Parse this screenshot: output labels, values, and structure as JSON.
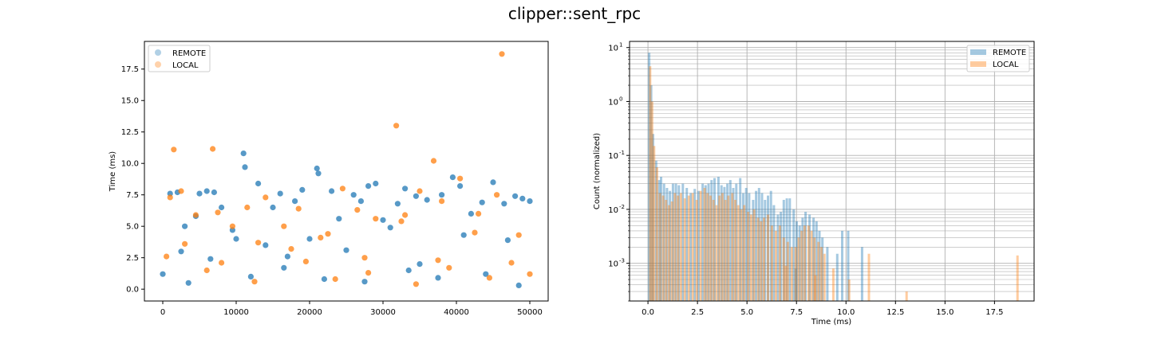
{
  "figure": {
    "title": "clipper::sent_rpc"
  },
  "colors": {
    "remote": "#1f77b4",
    "local": "#ff7f0e"
  },
  "chart_data": [
    {
      "type": "scatter",
      "xlabel": "",
      "ylabel": "Time (ms)",
      "xlim": [
        -2500,
        52500
      ],
      "ylim": [
        -0.94,
        19.7
      ],
      "xticks": [
        0,
        10000,
        20000,
        30000,
        40000,
        50000
      ],
      "xtick_labels": [
        "0",
        "10000",
        "20000",
        "30000",
        "40000",
        "50000"
      ],
      "yticks": [
        0.0,
        2.5,
        5.0,
        7.5,
        10.0,
        12.5,
        15.0,
        17.5
      ],
      "ytick_labels": [
        "0.0",
        "2.5",
        "5.0",
        "7.5",
        "10.0",
        "12.5",
        "15.0",
        "17.5"
      ],
      "grid": false,
      "legend": {
        "position": "top-left",
        "entries": [
          "REMOTE",
          "LOCAL"
        ]
      },
      "series": [
        {
          "name": "REMOTE",
          "color": "#1f77b4",
          "x": [
            0,
            1000,
            2000,
            3000,
            5000,
            6000,
            7000,
            8000,
            9500,
            11000,
            11200,
            13000,
            15000,
            16000,
            18000,
            19000,
            21000,
            21200,
            23000,
            24000,
            26000,
            27000,
            28000,
            29000,
            31000,
            32000,
            33000,
            34500,
            36000,
            38000,
            39500,
            40500,
            42000,
            43500,
            45000,
            46500,
            48000,
            49000,
            50000,
            2500,
            4500,
            10000,
            14000,
            17000,
            20000,
            25000,
            30000,
            35000,
            41000,
            47000,
            3500,
            12000,
            22000,
            33500,
            44000,
            6500,
            16500,
            27500,
            37500,
            48500
          ],
          "y": [
            1.2,
            7.6,
            7.7,
            5.0,
            7.6,
            7.8,
            7.7,
            6.5,
            4.7,
            10.8,
            9.7,
            8.4,
            6.5,
            7.6,
            7.0,
            7.9,
            9.6,
            9.2,
            7.8,
            5.6,
            7.5,
            7.0,
            8.2,
            8.4,
            4.9,
            6.8,
            8.0,
            7.4,
            7.1,
            7.5,
            8.9,
            8.2,
            6.0,
            6.9,
            8.5,
            6.8,
            7.4,
            7.2,
            7.0,
            3.0,
            5.8,
            4.0,
            3.5,
            2.6,
            4.0,
            3.1,
            5.5,
            2.0,
            4.3,
            3.9,
            0.5,
            1.0,
            0.8,
            1.5,
            1.2,
            2.4,
            1.7,
            0.6,
            0.9,
            0.3
          ]
        },
        {
          "name": "LOCAL",
          "color": "#ff7f0e",
          "x": [
            1500,
            6800,
            31800,
            36900,
            46200,
            1000,
            2500,
            4500,
            7500,
            9500,
            11500,
            14000,
            16500,
            18500,
            21500,
            24500,
            26500,
            29000,
            33000,
            35000,
            38000,
            40500,
            43000,
            45500,
            48500,
            500,
            3000,
            8000,
            13000,
            17500,
            22500,
            27500,
            32500,
            37500,
            42500,
            47500,
            50000,
            6000,
            19500,
            28000,
            39000,
            44500,
            12500,
            23500,
            34500
          ],
          "y": [
            11.1,
            11.15,
            13.0,
            10.2,
            18.7,
            7.3,
            7.8,
            5.9,
            6.1,
            5.0,
            6.5,
            7.3,
            5.0,
            6.4,
            4.1,
            8.0,
            6.3,
            5.6,
            5.9,
            7.8,
            7.0,
            8.8,
            6.0,
            7.5,
            4.3,
            2.6,
            3.6,
            2.1,
            3.7,
            3.2,
            4.4,
            2.5,
            5.4,
            2.3,
            4.5,
            2.1,
            1.2,
            1.5,
            2.2,
            1.3,
            1.7,
            0.9,
            0.6,
            0.8,
            0.4
          ]
        }
      ]
    },
    {
      "type": "bar",
      "subtype": "histogram",
      "xlabel": "Time (ms)",
      "ylabel": "Count (normalized)",
      "xlim": [
        -0.93,
        19.5
      ],
      "ylim": [
        0.0002,
        13
      ],
      "yscale": "log",
      "xticks": [
        0.0,
        2.5,
        5.0,
        7.5,
        10.0,
        12.5,
        15.0,
        17.5
      ],
      "xtick_labels": [
        "0.0",
        "2.5",
        "5.0",
        "7.5",
        "10.0",
        "12.5",
        "15.0",
        "17.5"
      ],
      "yticks_major": [
        0.001,
        0.01,
        0.1,
        1,
        10
      ],
      "ytick_labels": [
        "10",
        "10",
        "10",
        "10",
        "10"
      ],
      "ytick_exponents": [
        "-3",
        "-2",
        "-1",
        "0",
        "1"
      ],
      "grid": true,
      "legend": {
        "position": "top-right",
        "entries": [
          "REMOTE",
          "LOCAL"
        ]
      },
      "series": [
        {
          "name": "REMOTE",
          "color": "#1f77b4",
          "bins": [
            [
              0.0,
              8.0
            ],
            [
              0.1,
              2.0
            ],
            [
              0.2,
              0.25
            ],
            [
              0.35,
              0.08
            ],
            [
              0.5,
              0.035
            ],
            [
              0.6,
              0.04
            ],
            [
              0.75,
              0.03
            ],
            [
              0.9,
              0.025
            ],
            [
              1.05,
              0.022
            ],
            [
              1.2,
              0.03
            ],
            [
              1.35,
              0.03
            ],
            [
              1.5,
              0.028
            ],
            [
              1.7,
              0.03
            ],
            [
              1.9,
              0.025
            ],
            [
              2.1,
              0.02
            ],
            [
              2.3,
              0.024
            ],
            [
              2.5,
              0.022
            ],
            [
              2.7,
              0.03
            ],
            [
              2.85,
              0.028
            ],
            [
              3.0,
              0.03
            ],
            [
              3.15,
              0.035
            ],
            [
              3.3,
              0.038
            ],
            [
              3.5,
              0.04
            ],
            [
              3.65,
              0.028
            ],
            [
              3.8,
              0.026
            ],
            [
              3.95,
              0.03
            ],
            [
              4.1,
              0.035
            ],
            [
              4.25,
              0.025
            ],
            [
              4.4,
              0.03
            ],
            [
              4.6,
              0.038
            ],
            [
              4.75,
              0.02
            ],
            [
              4.9,
              0.025
            ],
            [
              5.05,
              0.02
            ],
            [
              5.25,
              0.015
            ],
            [
              5.4,
              0.022
            ],
            [
              5.55,
              0.025
            ],
            [
              5.7,
              0.02
            ],
            [
              5.85,
              0.015
            ],
            [
              6.0,
              0.018
            ],
            [
              6.15,
              0.022
            ],
            [
              6.3,
              0.012
            ],
            [
              6.5,
              0.008
            ],
            [
              6.65,
              0.009
            ],
            [
              6.8,
              0.015
            ],
            [
              6.95,
              0.016
            ],
            [
              7.1,
              0.016
            ],
            [
              7.3,
              0.01
            ],
            [
              7.45,
              0.006
            ],
            [
              7.6,
              0.005
            ],
            [
              7.75,
              0.007
            ],
            [
              7.9,
              0.009
            ],
            [
              8.1,
              0.008
            ],
            [
              8.3,
              0.007
            ],
            [
              8.45,
              0.006
            ],
            [
              8.6,
              0.004
            ],
            [
              8.75,
              0.003
            ],
            [
              9.0,
              0.002
            ],
            [
              9.5,
              0.0015
            ],
            [
              9.75,
              0.004
            ],
            [
              10.05,
              0.004
            ],
            [
              10.75,
              0.002
            ],
            [
              7.4,
              0.0008
            ]
          ]
        },
        {
          "name": "LOCAL",
          "color": "#ff7f0e",
          "bins": [
            [
              0.05,
              4.5
            ],
            [
              0.15,
              1.0
            ],
            [
              0.25,
              0.15
            ],
            [
              0.4,
              0.06
            ],
            [
              0.55,
              0.02
            ],
            [
              0.7,
              0.018
            ],
            [
              0.85,
              0.015
            ],
            [
              1.0,
              0.012
            ],
            [
              1.15,
              0.014
            ],
            [
              1.3,
              0.02
            ],
            [
              1.45,
              0.018
            ],
            [
              1.6,
              0.02
            ],
            [
              1.8,
              0.016
            ],
            [
              2.0,
              0.018
            ],
            [
              2.2,
              0.02
            ],
            [
              2.4,
              0.015
            ],
            [
              2.6,
              0.022
            ],
            [
              2.8,
              0.025
            ],
            [
              2.95,
              0.02
            ],
            [
              3.1,
              0.018
            ],
            [
              3.25,
              0.015
            ],
            [
              3.4,
              0.012
            ],
            [
              3.55,
              0.018
            ],
            [
              3.7,
              0.02
            ],
            [
              3.85,
              0.015
            ],
            [
              4.0,
              0.018
            ],
            [
              4.2,
              0.02
            ],
            [
              4.35,
              0.015
            ],
            [
              4.5,
              0.012
            ],
            [
              4.65,
              0.01
            ],
            [
              4.8,
              0.012
            ],
            [
              5.0,
              0.009
            ],
            [
              5.15,
              0.008
            ],
            [
              5.3,
              0.01
            ],
            [
              5.5,
              0.007
            ],
            [
              5.65,
              0.006
            ],
            [
              5.8,
              0.007
            ],
            [
              6.0,
              0.008
            ],
            [
              6.2,
              0.005
            ],
            [
              6.4,
              0.004
            ],
            [
              6.6,
              0.005
            ],
            [
              6.8,
              0.003
            ],
            [
              7.0,
              0.0025
            ],
            [
              7.2,
              0.002
            ],
            [
              7.4,
              0.002
            ],
            [
              7.55,
              0.003
            ],
            [
              7.7,
              0.004
            ],
            [
              7.85,
              0.005
            ],
            [
              8.05,
              0.005
            ],
            [
              8.2,
              0.004
            ],
            [
              8.35,
              0.003
            ],
            [
              8.55,
              0.0025
            ],
            [
              8.7,
              0.002
            ],
            [
              8.85,
              0.0015
            ],
            [
              9.3,
              0.0008
            ],
            [
              10.1,
              0.0005
            ],
            [
              11.1,
              0.0015
            ],
            [
              13.0,
              0.0003
            ],
            [
              18.6,
              0.0014
            ],
            [
              6.9,
              0.0009
            ],
            [
              8.4,
              0.0006
            ]
          ]
        }
      ]
    }
  ]
}
